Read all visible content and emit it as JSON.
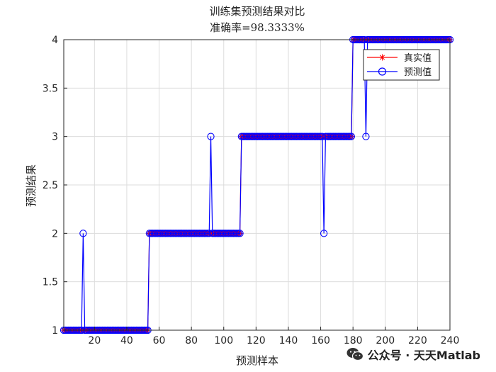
{
  "chart_data": {
    "type": "line",
    "title": "训练集预测结果对比",
    "subtitle": "准确率=98.3333%",
    "xlabel": "预测样本",
    "ylabel": "预测结果",
    "xlim": [
      1,
      240
    ],
    "ylim": [
      1,
      4
    ],
    "xticks": [
      20,
      40,
      60,
      80,
      100,
      120,
      140,
      160,
      180,
      200,
      220,
      240
    ],
    "yticks": [
      1,
      1.5,
      2,
      2.5,
      3,
      3.5,
      4
    ],
    "grid": true,
    "legend_position": "top-right",
    "series": [
      {
        "name": "真实值",
        "color": "#ff0000",
        "marker": "asterisk",
        "segments": [
          {
            "from": 1,
            "to": 53,
            "value": 1
          },
          {
            "from": 54,
            "to": 110,
            "value": 2
          },
          {
            "from": 111,
            "to": 179,
            "value": 3
          },
          {
            "from": 180,
            "to": 240,
            "value": 4
          }
        ]
      },
      {
        "name": "预测值",
        "color": "#0000ff",
        "marker": "circle",
        "segments": [
          {
            "from": 1,
            "to": 53,
            "value": 1
          },
          {
            "from": 54,
            "to": 110,
            "value": 2
          },
          {
            "from": 111,
            "to": 179,
            "value": 3
          },
          {
            "from": 180,
            "to": 240,
            "value": 4
          }
        ],
        "overrides": [
          {
            "x": 13,
            "value": 2
          },
          {
            "x": 92,
            "value": 3
          },
          {
            "x": 162,
            "value": 2
          },
          {
            "x": 188,
            "value": 3
          }
        ]
      }
    ]
  },
  "watermark": {
    "icon": "wechat-icon",
    "text": "公众号 · 天天Matlab"
  }
}
